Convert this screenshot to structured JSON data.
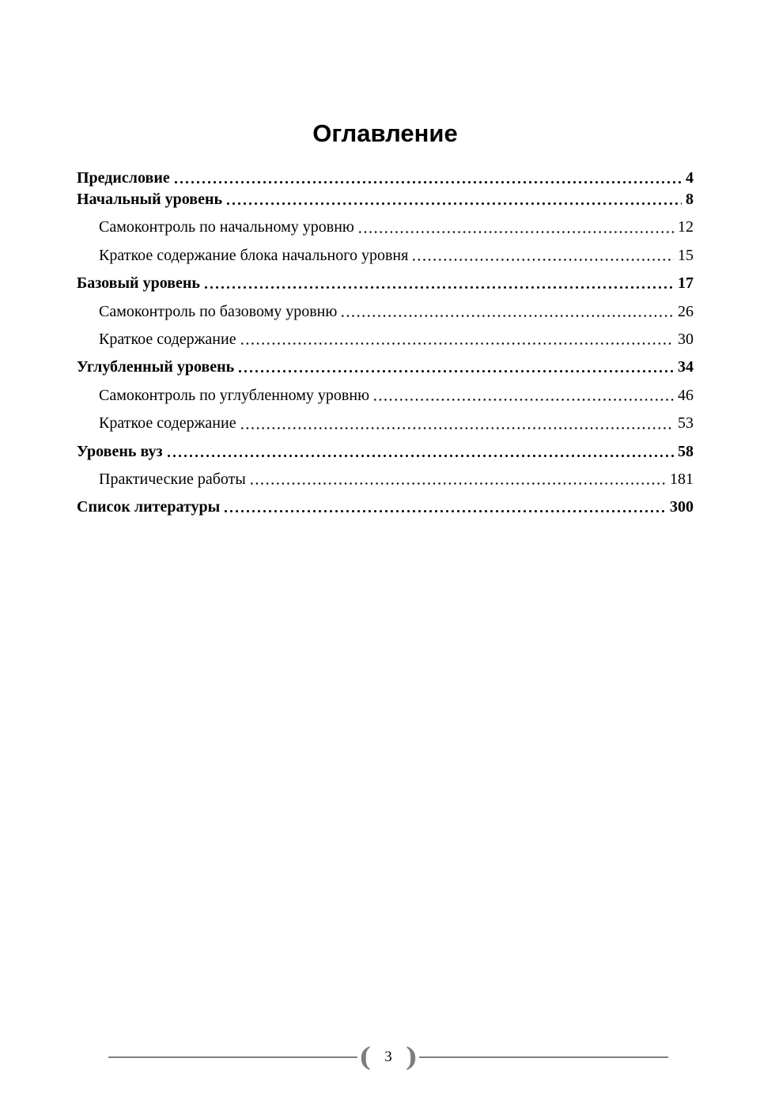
{
  "document": {
    "title": "Оглавление"
  },
  "toc": {
    "entries": [
      {
        "title": "Предисловие",
        "page": "4",
        "level": 1
      },
      {
        "title": "Начальный уровень",
        "page": "8",
        "level": 1
      },
      {
        "title": "Самоконтроль по начальному уровню",
        "page": "12",
        "level": 2
      },
      {
        "title": "Краткое содержание блока начального уровня",
        "page": "15",
        "level": 2
      },
      {
        "title": "Базовый уровень",
        "page": "17",
        "level": 1
      },
      {
        "title": "Самоконтроль по базовому уровню",
        "page": "26",
        "level": 2
      },
      {
        "title": "Краткое содержание",
        "page": "30",
        "level": 2
      },
      {
        "title": "Углубленный уровень",
        "page": "34",
        "level": 1
      },
      {
        "title": "Самоконтроль по углубленному уровню",
        "page": "46",
        "level": 2
      },
      {
        "title": "Краткое содержание",
        "page": "53",
        "level": 2
      },
      {
        "title": "Уровень вуз",
        "page": "58",
        "level": 1
      },
      {
        "title": "Практические работы",
        "page": "181",
        "level": 2
      },
      {
        "title": "Список литературы",
        "page": "300",
        "level": 1
      }
    ]
  },
  "footer": {
    "page_number": "3",
    "left_ornament": "(",
    "right_ornament": ")"
  },
  "colors": {
    "text": "#000000",
    "footer_rule": "#7f7f7f"
  }
}
